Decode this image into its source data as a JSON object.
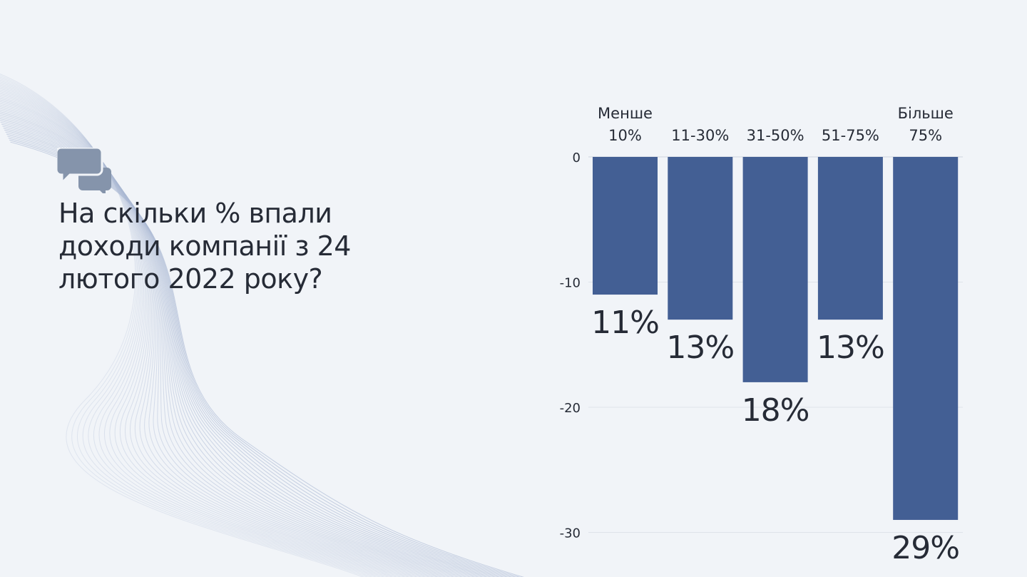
{
  "question": "На скільки % впали доходи компанії з 24 лютого 2022 року?",
  "icon": "speech-bubbles-icon",
  "colors": {
    "bar": "#435f94",
    "background": "#f1f4f8",
    "text": "#262b36",
    "icon": "#8594ab"
  },
  "chart_data": {
    "type": "bar",
    "title": "На скільки % впали доходи компанії з 24 лютого 2022 року?",
    "categories": [
      [
        "Менше",
        "10%"
      ],
      [
        "",
        "11-30%"
      ],
      [
        "",
        "31-50%"
      ],
      [
        "",
        "51-75%"
      ],
      [
        "Більше",
        "75%"
      ]
    ],
    "values": [
      -11,
      -13,
      -18,
      -13,
      -29
    ],
    "data_labels": [
      "11%",
      "13%",
      "18%",
      "13%",
      "29%"
    ],
    "yticks": [
      0,
      -10,
      -20,
      -30
    ],
    "ylim": [
      -30,
      0
    ],
    "xlabel": "",
    "ylabel": "",
    "grid": true
  }
}
